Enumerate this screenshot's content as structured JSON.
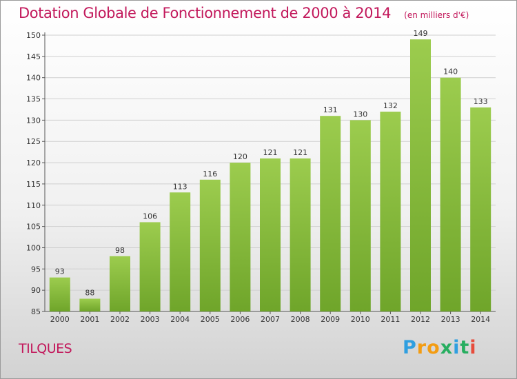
{
  "header": {
    "title": "Dotation Globale de Fonctionnement de 2000 à 2014",
    "unit": "(en milliers d'€)"
  },
  "footer": {
    "town": "TILQUES",
    "logo_letters": [
      "P",
      "r",
      "o",
      "x",
      "i",
      "t",
      "i"
    ],
    "logo_colors": [
      "#2f9fe0",
      "#f39c12",
      "#f39c12",
      "#27ae60",
      "#2f9fe0",
      "#27ae60",
      "#e74c3c"
    ]
  },
  "colors": {
    "accent": "#c2185b",
    "bar_light": "#9ccc4e",
    "bar_dark": "#6fa52a"
  },
  "chart_data": {
    "type": "bar",
    "categories": [
      "2000",
      "2001",
      "2002",
      "2003",
      "2004",
      "2005",
      "2006",
      "2007",
      "2008",
      "2009",
      "2010",
      "2011",
      "2012",
      "2013",
      "2014"
    ],
    "values": [
      93,
      88,
      98,
      106,
      113,
      116,
      120,
      121,
      121,
      131,
      130,
      132,
      149,
      140,
      133
    ],
    "ylim": [
      85,
      150
    ],
    "yticks": [
      85,
      90,
      95,
      100,
      105,
      110,
      115,
      120,
      125,
      130,
      135,
      140,
      145,
      150
    ],
    "grid": true,
    "data_labels": true
  }
}
